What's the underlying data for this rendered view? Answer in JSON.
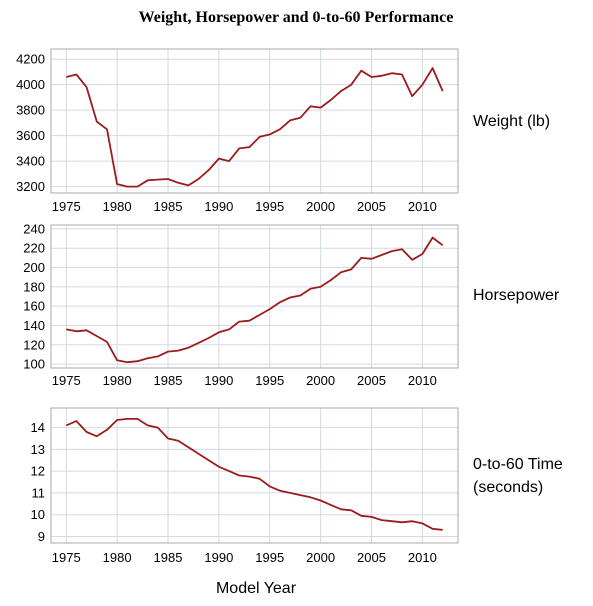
{
  "chart_data": {
    "type": "line",
    "title": "Weight, Horsepower and 0-to-60 Performance",
    "xlabel": "Model Year",
    "line_color": "#9b1c1c",
    "grid": true,
    "x": [
      1975,
      1976,
      1977,
      1978,
      1979,
      1980,
      1981,
      1982,
      1983,
      1984,
      1985,
      1986,
      1987,
      1988,
      1989,
      1990,
      1991,
      1992,
      1993,
      1994,
      1995,
      1996,
      1997,
      1998,
      1999,
      2000,
      2001,
      2002,
      2003,
      2004,
      2005,
      2006,
      2007,
      2008,
      2009,
      2010,
      2011,
      2012
    ],
    "xlim": [
      1973.5,
      2013.5
    ],
    "xticks": [
      "1975",
      "1980",
      "1985",
      "1990",
      "1995",
      "2000",
      "2005",
      "2010"
    ],
    "panels": [
      {
        "label": "Weight (lb)",
        "ylim": [
          3150,
          4280
        ],
        "yticks": [
          "3200",
          "3400",
          "3600",
          "3800",
          "4000",
          "4200"
        ],
        "values": [
          4060,
          4080,
          3980,
          3710,
          3650,
          3220,
          3200,
          3200,
          3250,
          3255,
          3260,
          3230,
          3210,
          3260,
          3330,
          3420,
          3400,
          3500,
          3510,
          3590,
          3610,
          3650,
          3720,
          3740,
          3830,
          3820,
          3880,
          3950,
          4000,
          4110,
          4060,
          4070,
          4090,
          4080,
          3910,
          4000,
          4130,
          3950
        ]
      },
      {
        "label": "Horsepower",
        "ylim": [
          96,
          244
        ],
        "yticks": [
          "100",
          "120",
          "140",
          "160",
          "180",
          "200",
          "220",
          "240"
        ],
        "values": [
          136,
          134,
          135,
          129,
          123,
          104,
          102,
          103,
          106,
          108,
          113,
          114,
          117,
          122,
          127,
          133,
          136,
          144,
          145,
          151,
          157,
          164,
          169,
          171,
          178,
          180,
          187,
          195,
          198,
          210,
          209,
          213,
          217,
          219,
          208,
          214,
          231,
          223
        ]
      },
      {
        "label_lines": [
          "0-to-60 Time",
          "(seconds)"
        ],
        "ylim": [
          8.7,
          14.9
        ],
        "yticks": [
          "9",
          "10",
          "11",
          "12",
          "13",
          "14"
        ],
        "values": [
          14.1,
          14.3,
          13.8,
          13.6,
          13.9,
          14.35,
          14.4,
          14.4,
          14.1,
          14.0,
          13.5,
          13.4,
          13.1,
          12.8,
          12.5,
          12.2,
          12.0,
          11.8,
          11.75,
          11.65,
          11.3,
          11.1,
          11.0,
          10.9,
          10.8,
          10.65,
          10.45,
          10.25,
          10.2,
          9.95,
          9.9,
          9.75,
          9.7,
          9.65,
          9.7,
          9.6,
          9.35,
          9.3
        ]
      }
    ]
  }
}
